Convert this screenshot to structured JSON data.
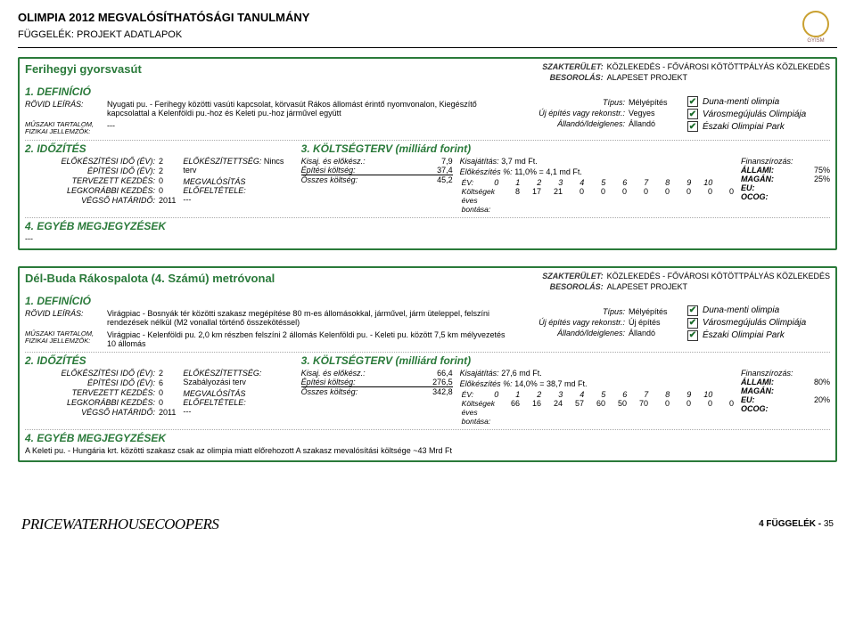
{
  "doc": {
    "title": "OLIMPIA 2012 MEGVALÓSÍTHATÓSÁGI TANULMÁNY",
    "subtitle": "FÜGGELÉK: PROJEKT ADATLAPOK",
    "logo_label": "GYISM"
  },
  "footer": {
    "brand": "PRICEWATERHOUSECOOPERS",
    "page_label": "4 FÜGGELÉK -",
    "page_num": "35"
  },
  "labels": {
    "szakterulet": "SZAKTERÜLET:",
    "besorolas": "BESOROLÁS:",
    "definicio": "1. DEFINÍCIÓ",
    "rovid_leiras": "RÖVID LEÍRÁS:",
    "muszaki": "MŰSZAKI TARTALOM, FIZIKAI JELLEMZŐK:",
    "tipus": "Típus:",
    "uj_epites": "Új építés vagy rekonstr.:",
    "allando": "Állandó/Ideiglenes:",
    "chk1": "Duna-menti olimpia",
    "chk2": "Városmegújulás Olimpiája",
    "chk3": "Északi Olimpiai Park",
    "idozites": "2. IDŐZÍTÉS",
    "elok_ido": "ELŐKÉSZÍTÉSI IDŐ (ÉV):",
    "epit_ido": "ÉPÍTÉSI IDŐ (ÉV):",
    "terv_kezd": "TERVEZETT KEZDÉS:",
    "legk_kezd": "LEGKORÁBBI KEZDÉS:",
    "vegso": "VÉGSŐ HATÁRIDŐ:",
    "elok_seg": "ELŐKÉSZÍTETTSÉG:",
    "megval": "MEGVALÓSÍTÁS ELŐFELTÉTELE:",
    "koltseg": "3. KÖLTSÉGTERV (milliárd forint)",
    "kisaj_elok": "Kisaj. és előkész.:",
    "epitesi_k": "Építési költség:",
    "osszes_k": "Összes költség:",
    "ev": "ÉV:",
    "bontas": "Költségek éves bontása:",
    "kisajat": "Kisajátítás:",
    "elok_pct": "Előkészítés %:",
    "finanszirozas": "Finanszírozás:",
    "allami": "ÁLLAMI:",
    "magan": "MAGÁN:",
    "eu": "EU:",
    "ocog": "OCOG:",
    "egyeb": "4. EGYÉB MEGJEGYZÉSEK"
  },
  "cards": [
    {
      "title": "Ferihegyi gyorsvasút",
      "szakterulet": "KÖZLEKEDÉS - FŐVÁROSI KÖTÖTTPÁLYÁS KÖZLEKEDÉS",
      "besorolas": "ALAPESET PROJEKT",
      "rovid": "Nyugati pu. - Ferihegy közötti vasúti kapcsolat, körvasút Rákos állomást érintő nyomvonalon, Kiegészítő kapcsolattal a Kelenföldi pu.-hoz és Keleti pu.-hoz járművel együtt",
      "muszaki": "---",
      "tipus": "Mélyépítés",
      "uj": "Vegyes",
      "allando": "Állandó",
      "timing": {
        "elok": "2",
        "epit": "2",
        "terv": "0",
        "legk": "0",
        "vegso": "2011"
      },
      "elok_seg": "Nincs terv",
      "megval": "---",
      "cost": {
        "kisaj": "7,9",
        "epit": "37,4",
        "ossz": "45,2"
      },
      "years": [
        "0",
        "1",
        "2",
        "3",
        "4",
        "5",
        "6",
        "7",
        "8",
        "9",
        "10"
      ],
      "yvals": [
        "8",
        "17",
        "21",
        "0",
        "0",
        "0",
        "0",
        "0",
        "0",
        "0",
        "0"
      ],
      "kisajat": "3,7 md Ft.",
      "elok_pct": "11,0% =",
      "elok_amt": "4,1 md Ft.",
      "fin": {
        "allami": "75%",
        "magan": "25%",
        "eu": "",
        "ocog": ""
      },
      "notes": "---"
    },
    {
      "title": "Dél-Buda Rákospalota (4. Számú) metróvonal",
      "szakterulet": "KÖZLEKEDÉS - FŐVÁROSI KÖTÖTTPÁLYÁS KÖZLEKEDÉS",
      "besorolas": "ALAPESET PROJEKT",
      "rovid": "Virágpiac - Bosnyák tér közötti szakasz megépítése 80 m-es állomásokkal, járművel, járm üteleppel, felszíni rendezések nélkül (M2 vonallal történő összekötéssel)",
      "muszaki": "Virágpiac - Kelenföldi pu.    2,0 km részben felszíni 2 állomás                                                      Kelenföldi pu. - Keleti pu. között 7,5 km mélyvezetés 10 állomás",
      "tipus": "Mélyépítés",
      "uj": "Új építés",
      "allando": "Állandó",
      "timing": {
        "elok": "2",
        "epit": "6",
        "terv": "0",
        "legk": "0",
        "vegso": "2011"
      },
      "elok_seg": "Szabályozási terv",
      "megval": "---",
      "cost": {
        "kisaj": "66,4",
        "epit": "276,5",
        "ossz": "342,8"
      },
      "years": [
        "0",
        "1",
        "2",
        "3",
        "4",
        "5",
        "6",
        "7",
        "8",
        "9",
        "10"
      ],
      "yvals": [
        "66",
        "16",
        "24",
        "57",
        "60",
        "50",
        "70",
        "0",
        "0",
        "0",
        "0"
      ],
      "kisajat": "27,6 md Ft.",
      "elok_pct": "14,0% =",
      "elok_amt": "38,7 md Ft.",
      "fin": {
        "allami": "80%",
        "magan": "",
        "eu": "20%",
        "ocog": ""
      },
      "notes": "A Keleti pu. - Hungária krt.  közötti szakasz csak az olimpia miatt előrehozott A szakasz mevalósítási költsége ~43 Mrd Ft"
    }
  ]
}
